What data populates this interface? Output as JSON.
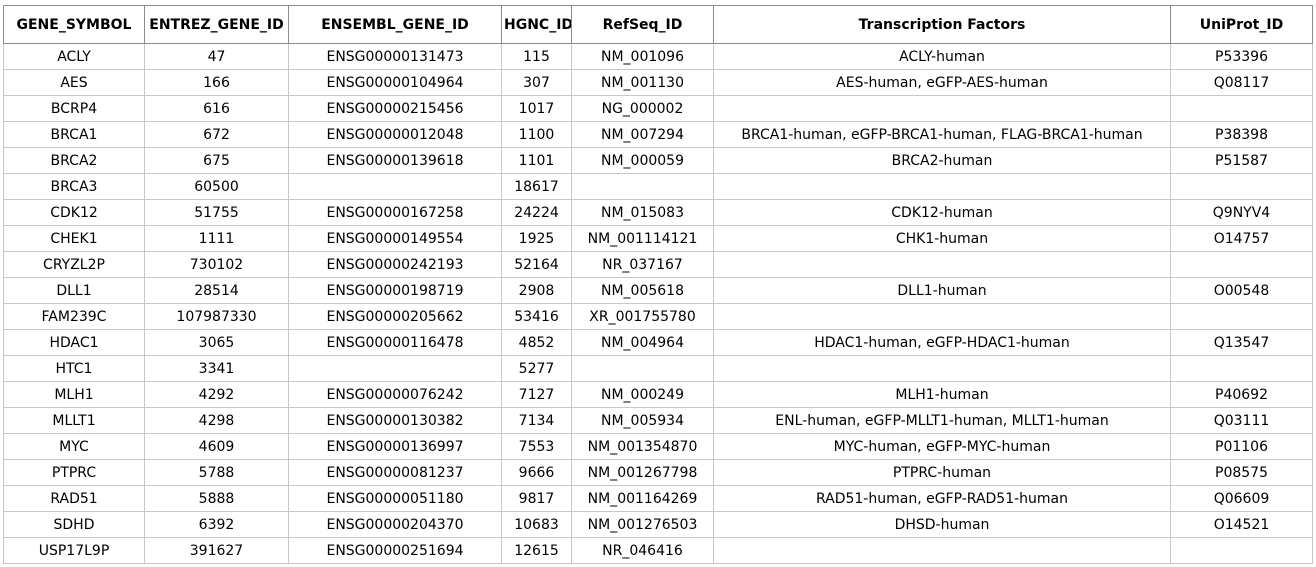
{
  "table": {
    "headers": [
      "GENE_SYMBOL",
      "ENTREZ_GENE_ID",
      "ENSEMBL_GENE_ID",
      "HGNC_ID",
      "RefSeq_ID",
      "Transcription Factors",
      "UniProt_ID"
    ],
    "rows": [
      [
        "ACLY",
        "47",
        "ENSG00000131473",
        "115",
        "NM_001096",
        "ACLY-human",
        "P53396"
      ],
      [
        "AES",
        "166",
        "ENSG00000104964",
        "307",
        "NM_001130",
        "AES-human, eGFP-AES-human",
        "Q08117"
      ],
      [
        "BCRP4",
        "616",
        "ENSG00000215456",
        "1017",
        "NG_000002",
        "",
        ""
      ],
      [
        "BRCA1",
        "672",
        "ENSG00000012048",
        "1100",
        "NM_007294",
        "BRCA1-human, eGFP-BRCA1-human, FLAG-BRCA1-human",
        "P38398"
      ],
      [
        "BRCA2",
        "675",
        "ENSG00000139618",
        "1101",
        "NM_000059",
        "BRCA2-human",
        "P51587"
      ],
      [
        "BRCA3",
        "60500",
        "",
        "18617",
        "",
        "",
        ""
      ],
      [
        "CDK12",
        "51755",
        "ENSG00000167258",
        "24224",
        "NM_015083",
        "CDK12-human",
        "Q9NYV4"
      ],
      [
        "CHEK1",
        "1111",
        "ENSG00000149554",
        "1925",
        "NM_001114121",
        "CHK1-human",
        "O14757"
      ],
      [
        "CRYZL2P",
        "730102",
        "ENSG00000242193",
        "52164",
        "NR_037167",
        "",
        ""
      ],
      [
        "DLL1",
        "28514",
        "ENSG00000198719",
        "2908",
        "NM_005618",
        "DLL1-human",
        "O00548"
      ],
      [
        "FAM239C",
        "107987330",
        "ENSG00000205662",
        "53416",
        "XR_001755780",
        "",
        ""
      ],
      [
        "HDAC1",
        "3065",
        "ENSG00000116478",
        "4852",
        "NM_004964",
        "HDAC1-human, eGFP-HDAC1-human",
        "Q13547"
      ],
      [
        "HTC1",
        "3341",
        "",
        "5277",
        "",
        "",
        ""
      ],
      [
        "MLH1",
        "4292",
        "ENSG00000076242",
        "7127",
        "NM_000249",
        "MLH1-human",
        "P40692"
      ],
      [
        "MLLT1",
        "4298",
        "ENSG00000130382",
        "7134",
        "NM_005934",
        "ENL-human, eGFP-MLLT1-human, MLLT1-human",
        "Q03111"
      ],
      [
        "MYC",
        "4609",
        "ENSG00000136997",
        "7553",
        "NM_001354870",
        "MYC-human, eGFP-MYC-human",
        "P01106"
      ],
      [
        "PTPRC",
        "5788",
        "ENSG00000081237",
        "9666",
        "NM_001267798",
        "PTPRC-human",
        "P08575"
      ],
      [
        "RAD51",
        "5888",
        "ENSG00000051180",
        "9817",
        "NM_001164269",
        "RAD51-human, eGFP-RAD51-human",
        "Q06609"
      ],
      [
        "SDHD",
        "6392",
        "ENSG00000204370",
        "10683",
        "NM_001276503",
        "DHSD-human",
        "O14521"
      ],
      [
        "USP17L9P",
        "391627",
        "ENSG00000251694",
        "12615",
        "NR_046416",
        "",
        ""
      ]
    ]
  }
}
